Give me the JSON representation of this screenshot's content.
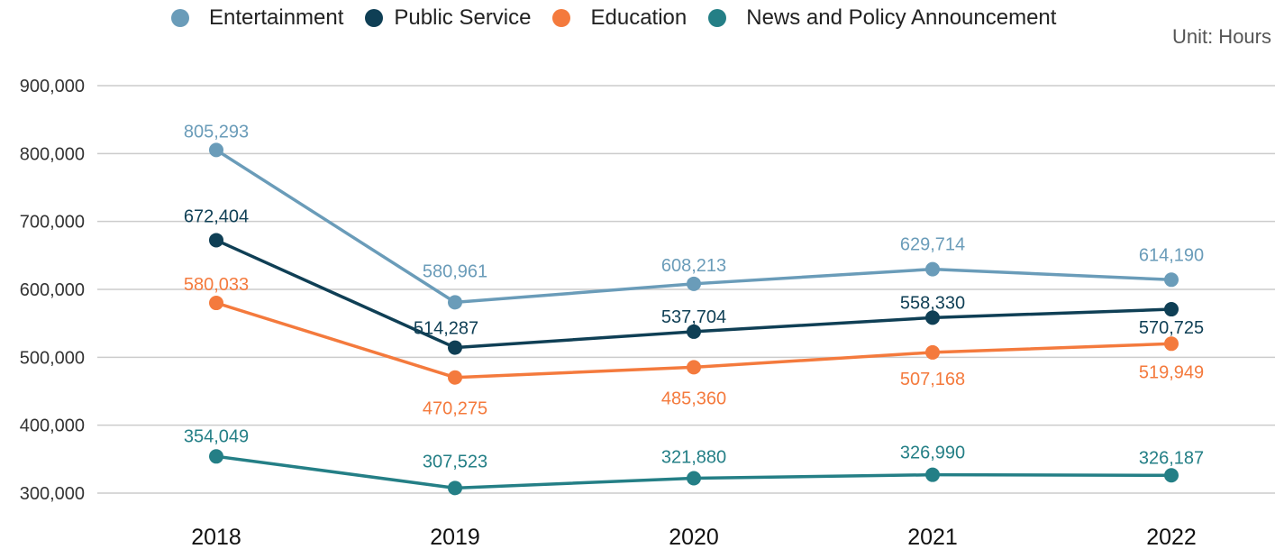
{
  "unit_label": "Unit: Hours",
  "colors": {
    "entertainment": "#6a9cb9",
    "public_service": "#0f3f55",
    "education": "#f47a3d",
    "news": "#247f86",
    "grid": "#cccccc"
  },
  "chart_data": {
    "type": "line",
    "x": [
      "2018",
      "2019",
      "2020",
      "2021",
      "2022"
    ],
    "y_ticks": [
      "300,000",
      "400,000",
      "500,000",
      "600,000",
      "700,000",
      "800,000",
      "900,000"
    ],
    "ylim": [
      300000,
      900000
    ],
    "grid": true,
    "legend_position": "top",
    "series": [
      {
        "name": "Entertainment",
        "color": "#6a9cb9",
        "values": [
          805293,
          580961,
          608213,
          629714,
          614190
        ],
        "labels": [
          "805,293",
          "580,961",
          "608,213",
          "629,714",
          "614,190"
        ]
      },
      {
        "name": "Public Service",
        "color": "#0f3f55",
        "values": [
          672404,
          514287,
          537704,
          558330,
          570725
        ],
        "labels": [
          "672,404",
          "514,287",
          "537,704",
          "558,330",
          "570,725"
        ]
      },
      {
        "name": "Education",
        "color": "#f47a3d",
        "values": [
          580033,
          470275,
          485360,
          507168,
          519949
        ],
        "labels": [
          "580,033",
          "470,275",
          "485,360",
          "507,168",
          "519,949"
        ]
      },
      {
        "name": "News and Policy Announcement",
        "color": "#247f86",
        "values": [
          354049,
          307523,
          321880,
          326990,
          326187
        ],
        "labels": [
          "354,049",
          "307,523",
          "321,880",
          "326,990",
          "326,187"
        ]
      }
    ]
  }
}
